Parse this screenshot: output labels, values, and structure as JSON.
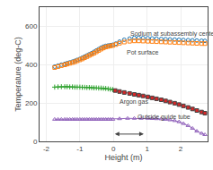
{
  "chart_data": {
    "type": "scatter",
    "xlabel": "Height (m)",
    "ylabel": "Temperature (deg-C)",
    "xlim": [
      -2.2,
      2.8
    ],
    "ylim": [
      0,
      700
    ],
    "xticks": [
      -2,
      -1,
      0,
      1,
      2
    ],
    "yticks": [
      0,
      200,
      400,
      600
    ],
    "grid": true,
    "series": [
      {
        "marker": "circle-open",
        "x": [
          -1.75,
          -1.65,
          -1.55,
          -1.45,
          -1.38,
          -1.3,
          -1.22,
          -1.15,
          -1.08,
          -1.0,
          -0.93,
          -0.86,
          -0.79,
          -0.72,
          -0.65,
          -0.58,
          -0.51,
          -0.44,
          -0.37,
          -0.3,
          -0.23,
          -0.16,
          -0.09,
          -0.02,
          0.07,
          0.18,
          0.32,
          0.48,
          0.62,
          0.75,
          0.88,
          1.02,
          1.15,
          1.28,
          1.42,
          1.55,
          1.68,
          1.82,
          1.95,
          2.08,
          2.22,
          2.35,
          2.48,
          2.62,
          2.72
        ],
        "values": [
          390,
          395,
          400,
          404,
          408,
          412,
          416,
          420,
          425,
          430,
          436,
          442,
          448,
          454,
          460,
          467,
          474,
          481,
          488,
          494,
          498,
          500,
          502,
          504,
          510,
          520,
          530,
          536,
          540,
          540,
          539,
          538,
          537,
          536,
          534,
          533,
          532,
          531,
          530,
          529,
          528,
          527,
          526,
          525,
          524
        ]
      },
      {
        "marker": "square-open",
        "x": [
          -1.75,
          -1.65,
          -1.55,
          -1.45,
          -1.38,
          -1.3,
          -1.22,
          -1.15,
          -1.08,
          -1.0,
          -0.93,
          -0.86,
          -0.79,
          -0.72,
          -0.65,
          -0.58,
          -0.51,
          -0.44,
          -0.37,
          -0.3,
          -0.23,
          -0.16,
          -0.09,
          -0.02,
          0.07,
          0.18,
          0.32,
          0.48,
          0.62,
          0.75,
          0.88,
          1.02,
          1.15,
          1.28,
          1.42,
          1.55,
          1.68,
          1.82,
          1.95,
          2.08,
          2.22,
          2.35,
          2.48,
          2.62,
          2.72
        ],
        "values": [
          385,
          390,
          395,
          399,
          403,
          407,
          411,
          415,
          420,
          425,
          430,
          436,
          442,
          448,
          454,
          460,
          467,
          474,
          481,
          487,
          492,
          495,
          498,
          500,
          505,
          512,
          518,
          522,
          524,
          524,
          523,
          522,
          521,
          520,
          519,
          518,
          517,
          516,
          515,
          514,
          513,
          512,
          511,
          510,
          510
        ]
      },
      {
        "marker": "cross-thin-open",
        "line_style": "solid",
        "x": [
          -1.75,
          -1.65,
          -1.55,
          -1.45,
          -1.38,
          -1.3,
          -1.22,
          -1.15,
          -1.08,
          -1.0,
          -0.93,
          -0.86,
          -0.79,
          -0.72,
          -0.65,
          -0.58,
          -0.51,
          -0.44,
          -0.37,
          -0.3,
          -0.23,
          -0.16,
          -0.09,
          -0.02
        ],
        "values": [
          283,
          284,
          285,
          285,
          285,
          284,
          284,
          283,
          283,
          283,
          282,
          282,
          281,
          281,
          280,
          279,
          279,
          278,
          278,
          277,
          276,
          274,
          272,
          270
        ]
      },
      {
        "marker": "square",
        "line_style": "solid",
        "x": [
          0.05,
          0.18,
          0.32,
          0.48,
          0.62,
          0.75,
          0.88,
          1.02,
          1.15,
          1.28,
          1.42,
          1.55,
          1.68,
          1.82,
          1.95,
          2.08,
          2.22,
          2.35,
          2.48,
          2.62,
          2.72
        ],
        "values": [
          265,
          260,
          255,
          250,
          245,
          241,
          237,
          232,
          227,
          222,
          217,
          211,
          205,
          199,
          192,
          185,
          177,
          169,
          161,
          153,
          147
        ]
      },
      {
        "marker": "triangle-up-open",
        "line_style": "solid",
        "x": [
          -1.75,
          -1.65,
          -1.55,
          -1.45,
          -1.38,
          -1.3,
          -1.22,
          -1.15,
          -1.08,
          -1.0,
          -0.93,
          -0.86,
          -0.79,
          -0.72,
          -0.65,
          -0.58,
          -0.51,
          -0.44,
          -0.37,
          -0.3,
          -0.23,
          -0.16,
          -0.09,
          -0.02,
          0.18,
          0.42,
          0.62,
          0.82,
          1.02,
          1.15,
          1.28,
          1.42,
          1.55,
          1.68,
          1.82,
          1.95,
          2.08,
          2.22,
          2.35,
          2.48,
          2.62,
          2.72
        ],
        "values": [
          115,
          115,
          115,
          115,
          115,
          115,
          115,
          115,
          115,
          115,
          115,
          115,
          115,
          115,
          115,
          115,
          115,
          115,
          115,
          115,
          115,
          115,
          115,
          115,
          118,
          120,
          120,
          120,
          120,
          119,
          118,
          117,
          115,
          112,
          108,
          102,
          93,
          82,
          68,
          53,
          42,
          35
        ]
      }
    ],
    "annotations": [
      {
        "x": 0.45,
        "y": 590,
        "text": "Sodium at subassembly center"
      },
      {
        "x": 0.35,
        "y": 488,
        "text": "Pot surface"
      },
      {
        "x": 0.12,
        "y": 232,
        "text": "Argon gas"
      },
      {
        "x": 0.65,
        "y": 155,
        "text": "Outside guide tube"
      }
    ],
    "arrow": {
      "x_start": 0.0,
      "x_end": 0.9,
      "y": 38
    }
  }
}
